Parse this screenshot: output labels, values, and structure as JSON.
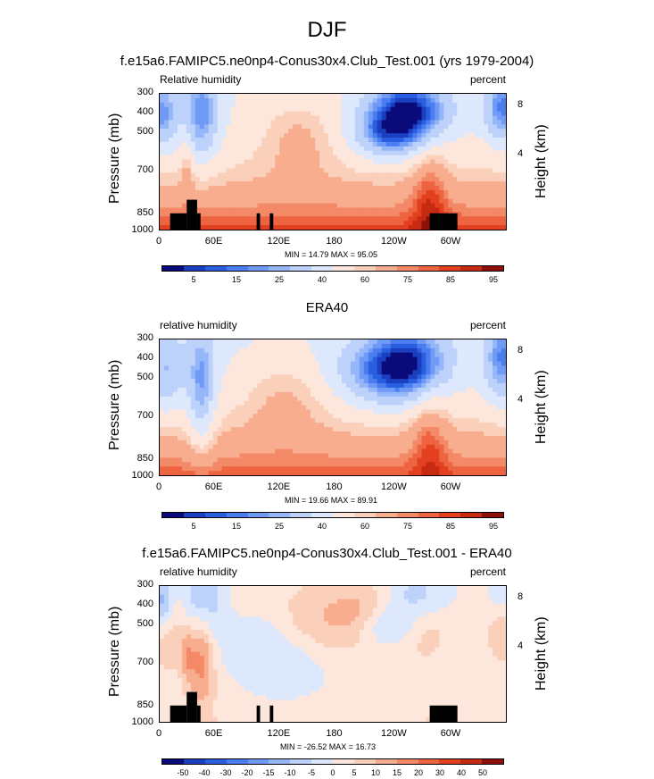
{
  "page_title": "DJF",
  "chart_data": [
    {
      "type": "heatmap",
      "title": "f.e15a6.FAMIPC5.ne0np4-Conus30x4.Club_Test.001 (yrs 1979-2004)",
      "variable_label": "Relative humidity",
      "units": "percent",
      "ylabel": "Pressure (mb)",
      "ylabel_right": "Height (km)",
      "x_ticks": [
        "0",
        "60E",
        "120E",
        "180",
        "120W",
        "60W"
      ],
      "y_ticks": [
        "300",
        "400",
        "500",
        "700",
        "850",
        "1000"
      ],
      "y_ticks_right": [
        "8",
        "4"
      ],
      "min_max_text": "MIN = 14.79  MAX = 95.05",
      "colorbar_labels": [
        "5",
        "15",
        "25",
        "40",
        "60",
        "75",
        "85",
        "95"
      ],
      "field": "model",
      "has_terrain": true
    },
    {
      "type": "heatmap",
      "title": "ERA40",
      "variable_label": "relative humidity",
      "units": "percent",
      "ylabel": "Pressure (mb)",
      "ylabel_right": "Height (km)",
      "x_ticks": [
        "0",
        "60E",
        "120E",
        "180",
        "120W",
        "60W"
      ],
      "y_ticks": [
        "300",
        "400",
        "500",
        "700",
        "850",
        "1000"
      ],
      "y_ticks_right": [
        "8",
        "4"
      ],
      "min_max_text": "MIN = 19.66  MAX = 89.91",
      "colorbar_labels": [
        "5",
        "15",
        "25",
        "40",
        "60",
        "75",
        "85",
        "95"
      ],
      "field": "obs",
      "has_terrain": false
    },
    {
      "type": "heatmap",
      "title": "f.e15a6.FAMIPC5.ne0np4-Conus30x4.Club_Test.001 - ERA40",
      "variable_label": "relative humidity",
      "units": "percent",
      "ylabel": "Pressure (mb)",
      "ylabel_right": "Height (km)",
      "x_ticks": [
        "0",
        "60E",
        "120E",
        "180",
        "120W",
        "60W"
      ],
      "y_ticks": [
        "300",
        "400",
        "500",
        "700",
        "850",
        "1000"
      ],
      "y_ticks_right": [
        "8",
        "4"
      ],
      "min_max_text": "MIN = -26.52  MAX = 16.73",
      "colorbar_labels": [
        "-50",
        "-40",
        "-30",
        "-20",
        "-15",
        "-10",
        "-5",
        "0",
        "5",
        "10",
        "15",
        "20",
        "30",
        "40",
        "50"
      ],
      "field": "diff",
      "has_terrain": true
    }
  ],
  "colors": {
    "rh_scale": [
      "#0a0a7a",
      "#1a3fbf",
      "#2a5ee0",
      "#4a7ef0",
      "#6f9af5",
      "#95b6f8",
      "#bdd2fb",
      "#dde8fd",
      "#fde7dc",
      "#fbd0bb",
      "#f7ad8e",
      "#f38967",
      "#ee6440",
      "#e2401f",
      "#c62a10",
      "#8c1007"
    ],
    "diff_scale": [
      "#0a0a7a",
      "#1a3fbf",
      "#2a5ee0",
      "#4a7ef0",
      "#6f9af5",
      "#95b6f8",
      "#bdd2fb",
      "#dde8fd",
      "#fde7dc",
      "#fbd0bb",
      "#f7ad8e",
      "#f38967",
      "#ee6440",
      "#e2401f",
      "#c62a10",
      "#8c1007"
    ],
    "terrain": "#000000"
  }
}
